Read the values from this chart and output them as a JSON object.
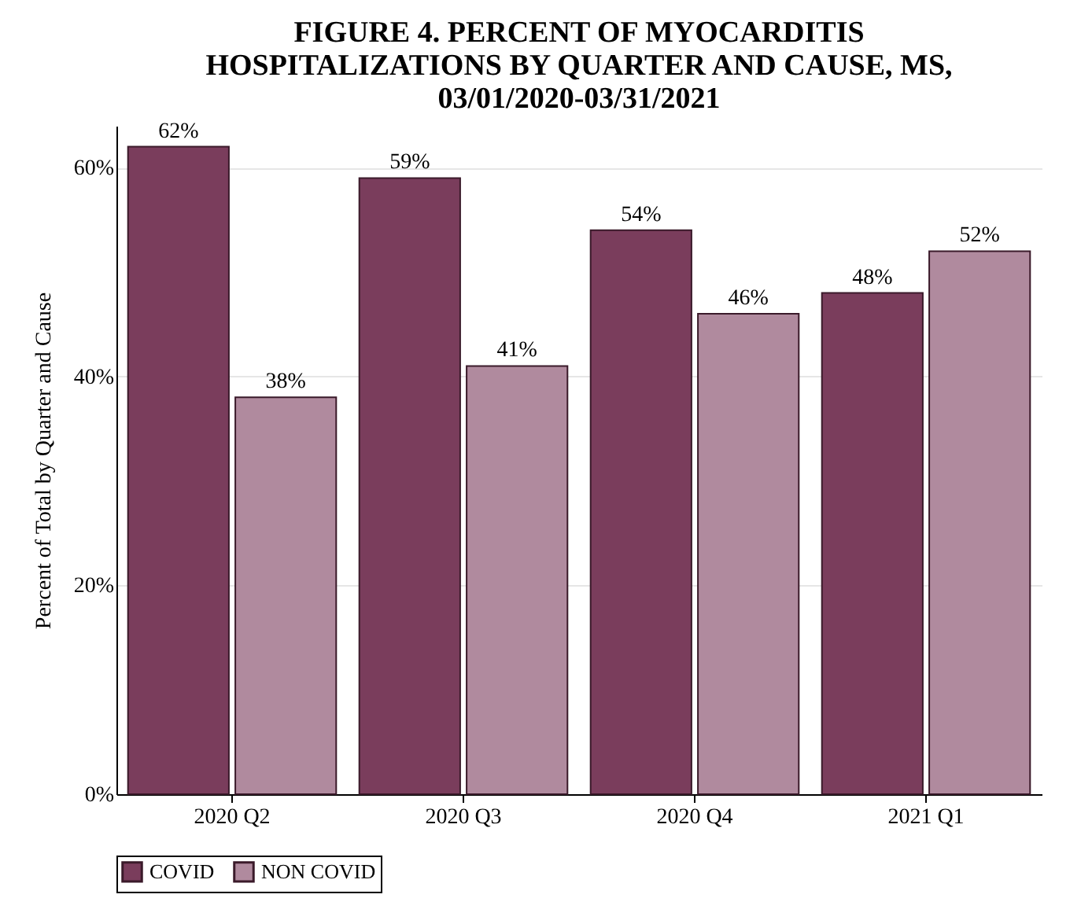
{
  "chart_data": {
    "type": "bar",
    "title": [
      "FIGURE 4. PERCENT OF MYOCARDITIS",
      "HOSPITALIZATIONS BY QUARTER AND CAUSE, MS,",
      "03/01/2020-03/31/2021"
    ],
    "ylabel": "Percent of Total by Quarter and Cause",
    "categories": [
      "2020 Q2",
      "2020 Q3",
      "2020 Q4",
      "2021 Q1"
    ],
    "series": [
      {
        "name": "COVID",
        "color": "#7a3d5c",
        "values": [
          62,
          59,
          54,
          48
        ],
        "value_labels": [
          "62%",
          "59%",
          "54%",
          "48%"
        ]
      },
      {
        "name": "NON COVID",
        "color": "#b08a9e",
        "values": [
          38,
          41,
          46,
          52
        ],
        "value_labels": [
          "38%",
          "41%",
          "46%",
          "52%"
        ]
      }
    ],
    "ylim": [
      0,
      64
    ],
    "yticks": [
      {
        "value": 0,
        "label": "0%"
      },
      {
        "value": 20,
        "label": "20%"
      },
      {
        "value": 40,
        "label": "40%"
      },
      {
        "value": 60,
        "label": "60%"
      }
    ],
    "grid": "y",
    "legend": "bottom"
  }
}
